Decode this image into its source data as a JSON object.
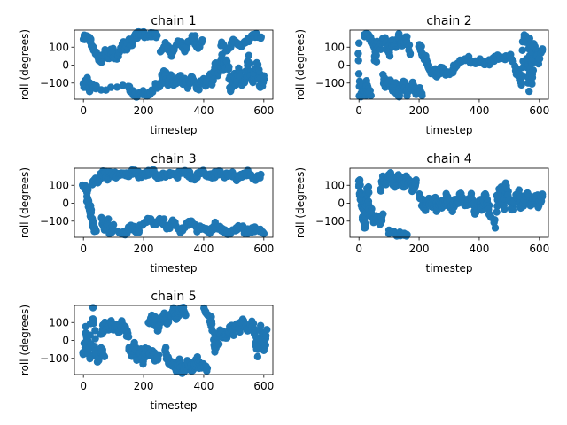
{
  "figure": {
    "marker_color": "#1f77b4"
  },
  "chart_data": [
    {
      "type": "scatter",
      "title": "chain 1",
      "xlabel": "timestep",
      "ylabel": "roll (degrees)",
      "xlim": [
        -30,
        630
      ],
      "ylim": [
        -190,
        195
      ],
      "xticks": [
        0,
        200,
        400,
        600
      ],
      "yticks": [
        -100,
        0,
        100
      ],
      "grid": false,
      "segments": [
        [
          0,
          150,
          10,
          158,
          20,
          140,
          30,
          110,
          45,
          60,
          60,
          20,
          70,
          90,
          80,
          40,
          90,
          100,
          100,
          60,
          110,
          30,
          120,
          80,
          130,
          120,
          140,
          90,
          150,
          140,
          160,
          110,
          170,
          150,
          180,
          175,
          195,
          180,
          210,
          160,
          230,
          175,
          245,
          165
        ],
        [
          0,
          -110,
          10,
          -70,
          20,
          -140,
          25,
          -100,
          40,
          -130,
          150,
          -120,
          165,
          -155,
          180,
          -170,
          200,
          -150,
          215,
          -165,
          230,
          -150
        ],
        [
          240,
          -100,
          250,
          -130,
          260,
          -80,
          270,
          -40,
          280,
          -100,
          290,
          -60,
          300,
          -110,
          310,
          -90,
          320,
          -70,
          330,
          -100,
          340,
          -80,
          350,
          -120,
          360,
          -60,
          370,
          -100,
          380,
          -140,
          390,
          -90
        ],
        [
          260,
          80,
          275,
          130,
          290,
          60,
          305,
          100,
          320,
          140,
          335,
          80,
          350,
          120,
          365,
          160,
          380,
          100,
          395,
          140
        ],
        [
          400,
          -80,
          410,
          -120,
          420,
          -40,
          430,
          -100,
          440,
          10,
          450,
          -60,
          460,
          50,
          470,
          -30,
          480,
          30,
          490,
          -140,
          500,
          -60,
          510,
          -100,
          520,
          -20,
          530,
          -120,
          540,
          -70,
          550,
          40,
          560,
          -90,
          570,
          -50,
          580,
          0,
          590,
          -130,
          600,
          -60
        ],
        [
          460,
          120,
          480,
          80,
          500,
          140,
          520,
          100,
          540,
          130,
          560,
          160,
          575,
          175,
          590,
          150
        ]
      ]
    },
    {
      "type": "scatter",
      "title": "chain 2",
      "xlabel": "timestep",
      "ylabel": "roll (degrees)",
      "xlim": [
        -30,
        630
      ],
      "ylim": [
        -190,
        195
      ],
      "xticks": [
        0,
        200,
        400,
        600
      ],
      "yticks": [
        -100,
        0,
        100
      ],
      "grid": false,
      "segments": [
        [
          0,
          110,
          5,
          -180,
          10,
          -150,
          15,
          -120,
          20,
          -170,
          25,
          -100,
          30,
          -140,
          40,
          -170
        ],
        [
          20,
          175,
          30,
          160,
          40,
          140,
          50,
          100,
          55,
          20,
          60,
          130,
          70,
          90,
          80,
          150,
          90,
          120,
          100,
          60,
          110,
          140,
          120,
          100,
          130,
          170,
          140,
          130,
          150,
          110,
          160,
          150,
          170,
          60
        ],
        [
          80,
          -60,
          90,
          -120,
          100,
          -80,
          110,
          -140,
          120,
          -100,
          130,
          -170,
          140,
          -130,
          150,
          -90,
          160,
          -160,
          170,
          -120,
          180,
          -100,
          190,
          -150,
          200,
          -130,
          210,
          -170
        ],
        [
          200,
          120,
          210,
          80,
          220,
          40,
          230,
          0,
          240,
          -40,
          250,
          -20,
          260,
          -60,
          270,
          -30,
          280,
          -10,
          290,
          -50,
          300,
          -40
        ],
        [
          310,
          -30,
          320,
          0,
          340,
          20,
          360,
          40,
          380,
          10,
          400,
          30,
          420,
          0,
          440,
          20,
          460,
          50,
          480,
          30,
          500,
          60,
          510,
          20
        ],
        [
          520,
          -20,
          530,
          -60,
          540,
          -100,
          550,
          170,
          560,
          130,
          565,
          -150,
          570,
          150,
          575,
          -100,
          580,
          110,
          590,
          60,
          600,
          20,
          610,
          90
        ]
      ]
    },
    {
      "type": "scatter",
      "title": "chain 3",
      "xlabel": "timestep",
      "ylabel": "roll (degrees)",
      "xlim": [
        -30,
        630
      ],
      "ylim": [
        -190,
        195
      ],
      "xticks": [
        0,
        200,
        400,
        600
      ],
      "yticks": [
        -100,
        0,
        100
      ],
      "grid": false,
      "segments": [
        [
          0,
          110,
          10,
          80,
          15,
          20,
          20,
          -20,
          25,
          -60,
          30,
          -100,
          35,
          -130,
          40,
          -150
        ],
        [
          30,
          100,
          40,
          140,
          50,
          120,
          60,
          160,
          70,
          175,
          80,
          130
        ],
        [
          60,
          -80,
          70,
          -150,
          80,
          -100,
          90,
          -170,
          100,
          -120
        ],
        [
          90,
          165,
          110,
          155,
          130,
          170,
          150,
          160,
          170,
          178,
          190,
          150,
          210,
          165,
          230,
          175,
          250,
          140,
          270,
          160,
          290,
          170,
          310,
          150,
          330,
          175,
          350,
          160,
          370,
          140,
          390,
          175,
          410,
          165,
          430,
          150,
          450,
          170,
          470,
          155,
          490,
          175,
          510,
          140,
          530,
          160,
          550,
          175,
          570,
          130,
          590,
          160
        ],
        [
          120,
          -150,
          140,
          -170,
          160,
          -130,
          180,
          -160,
          200,
          -110,
          220,
          -90,
          240,
          -120,
          260,
          -80,
          280,
          -140,
          300,
          -100,
          320,
          -160,
          340,
          -120,
          360,
          -100,
          380,
          -150,
          400,
          -130,
          420,
          -160,
          440,
          -120,
          460,
          -140,
          480,
          -170,
          500,
          -150,
          520,
          -130,
          540,
          -160,
          560,
          -150,
          580,
          -140,
          600,
          -170
        ]
      ]
    },
    {
      "type": "scatter",
      "title": "chain 4",
      "xlabel": "timestep",
      "ylabel": "roll (degrees)",
      "xlim": [
        -30,
        630
      ],
      "ylim": [
        -190,
        195
      ],
      "xticks": [
        0,
        200,
        400,
        600
      ],
      "yticks": [
        -100,
        0,
        100
      ],
      "grid": false,
      "segments": [
        [
          0,
          140,
          5,
          60,
          10,
          -20,
          15,
          -100,
          20,
          -130,
          25,
          0,
          30,
          100,
          35,
          -60
        ],
        [
          40,
          -40,
          50,
          -100,
          60,
          -80,
          70,
          -120,
          80,
          -60
        ],
        [
          70,
          80,
          80,
          140,
          90,
          110,
          100,
          170,
          110,
          130,
          120,
          90,
          130,
          150,
          140,
          120,
          150,
          100,
          160,
          140,
          170,
          110,
          180,
          80,
          190,
          130
        ],
        [
          100,
          -160,
          120,
          -175,
          140,
          -170,
          160,
          -175
        ],
        [
          200,
          40,
          210,
          0,
          220,
          -30,
          230,
          20,
          240,
          -10,
          250,
          30,
          260,
          -40,
          270,
          10,
          280,
          -20,
          290,
          40,
          300,
          0,
          310,
          -50,
          320,
          20,
          330,
          -10,
          340,
          60,
          350,
          10,
          360,
          -20,
          370,
          40,
          380,
          0,
          390,
          -60,
          400,
          20,
          410,
          -30,
          420,
          50,
          430,
          -10,
          440,
          -80
        ],
        [
          450,
          -140,
          460,
          40,
          470,
          80,
          480,
          -20,
          490,
          100,
          500,
          20,
          510,
          -40,
          520,
          30,
          530,
          70,
          540,
          -30,
          550,
          10,
          560,
          60,
          570,
          -10,
          580,
          20,
          590,
          40,
          600,
          -10,
          610,
          50
        ]
      ]
    },
    {
      "type": "scatter",
      "title": "chain 5",
      "xlabel": "timestep",
      "ylabel": "roll (degrees)",
      "xlim": [
        -30,
        630
      ],
      "ylim": [
        -190,
        195
      ],
      "xticks": [
        0,
        200,
        400,
        600
      ],
      "yticks": [
        -100,
        0,
        100
      ],
      "grid": false,
      "segments": [
        [
          0,
          -80,
          10,
          70,
          20,
          -100,
          30,
          170,
          40,
          -60,
          50,
          -120,
          60,
          -40,
          70,
          -90
        ],
        [
          60,
          40,
          70,
          100,
          80,
          70,
          90,
          110,
          100,
          60,
          110,
          90,
          120,
          40,
          130,
          100,
          140,
          70,
          150,
          20
        ],
        [
          150,
          -40,
          160,
          -80,
          170,
          -20,
          180,
          -100,
          190,
          -60,
          200,
          -120,
          210,
          -40,
          220,
          -90,
          230,
          -60,
          240,
          -110,
          250,
          -80
        ],
        [
          220,
          90,
          230,
          140,
          240,
          100,
          250,
          60,
          260,
          120,
          270,
          150,
          280,
          100,
          290,
          140,
          300,
          170,
          310,
          130,
          320,
          160,
          330,
          180,
          340,
          140
        ],
        [
          270,
          -40,
          280,
          -100,
          290,
          -140,
          300,
          -120,
          310,
          -160,
          320,
          -110,
          330,
          -180,
          340,
          -150,
          350,
          -120,
          360,
          -170,
          370,
          -140,
          380,
          -100,
          390,
          -160,
          400,
          -130,
          410,
          -170
        ],
        [
          400,
          180,
          420,
          140,
          430,
          80,
          440,
          -60,
          450,
          20,
          460,
          60,
          470,
          10,
          480,
          50,
          490,
          80,
          500,
          40,
          510,
          100,
          520,
          60,
          530,
          120,
          540,
          80,
          550,
          60,
          560,
          100,
          570,
          40,
          580,
          -80,
          590,
          80,
          600,
          -60,
          610,
          60
        ]
      ]
    }
  ]
}
